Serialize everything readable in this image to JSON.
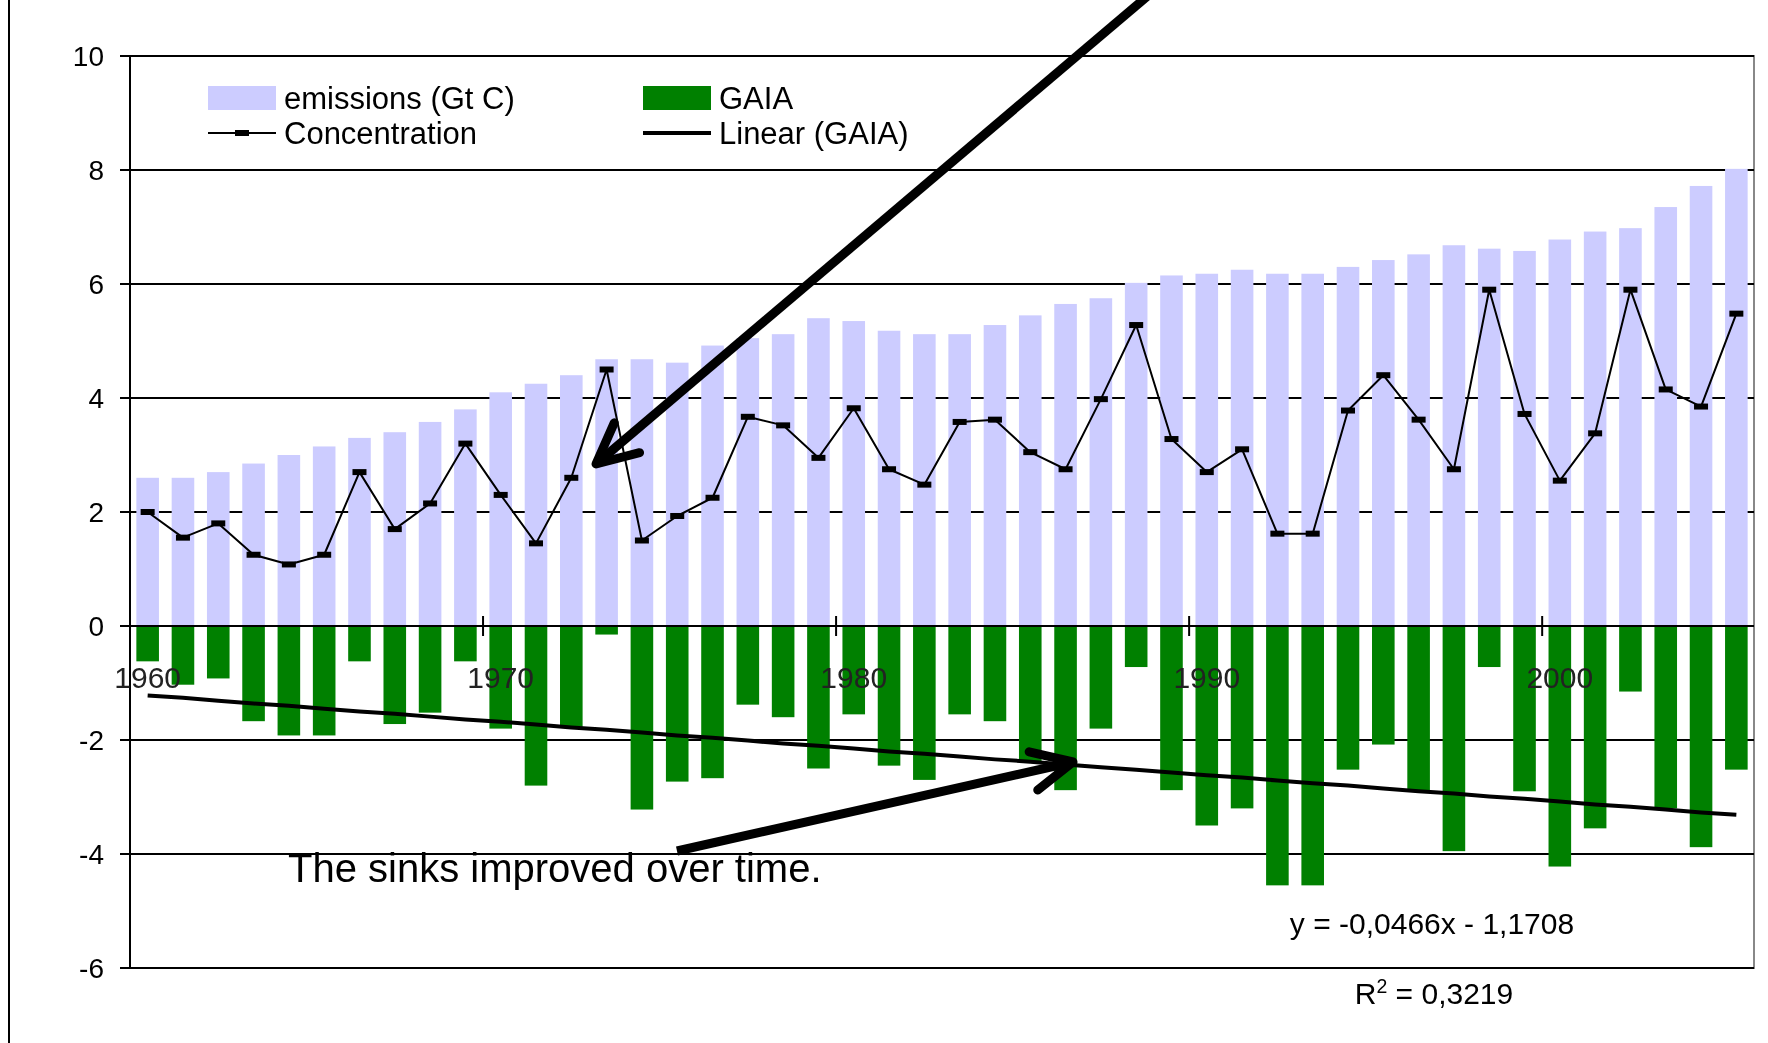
{
  "chart_data": {
    "type": "bar",
    "stacked": true,
    "categories": [
      "1960",
      null,
      null,
      null,
      null,
      null,
      null,
      null,
      null,
      null,
      "1970",
      null,
      null,
      null,
      null,
      null,
      null,
      null,
      null,
      null,
      "1980",
      null,
      null,
      null,
      null,
      null,
      null,
      null,
      null,
      null,
      "1990",
      null,
      null,
      null,
      null,
      null,
      null,
      null,
      null,
      null,
      "2000",
      null,
      null,
      null,
      null,
      null
    ],
    "series": [
      {
        "name": "emissions (Gt C)",
        "type": "bar",
        "color": "#ccccff",
        "values": [
          2.6,
          2.6,
          2.7,
          2.85,
          3.0,
          3.15,
          3.3,
          3.4,
          3.58,
          3.8,
          4.1,
          4.25,
          4.4,
          4.68,
          4.68,
          4.62,
          4.92,
          5.05,
          5.12,
          5.4,
          5.35,
          5.18,
          5.12,
          5.12,
          5.28,
          5.45,
          5.65,
          5.75,
          6.02,
          6.15,
          6.18,
          6.25,
          6.18,
          6.18,
          6.3,
          6.42,
          6.52,
          6.68,
          6.62,
          6.58,
          6.78,
          6.92,
          6.98,
          7.35,
          7.72,
          8.02
        ]
      },
      {
        "name": "GAIA",
        "type": "bar",
        "color": "#008000",
        "values": [
          -0.62,
          -1.03,
          -0.92,
          -1.67,
          -1.92,
          -1.92,
          -0.62,
          -1.72,
          -1.52,
          -0.62,
          -1.8,
          -2.8,
          -1.77,
          -0.15,
          -3.22,
          -2.73,
          -2.67,
          -1.38,
          -1.6,
          -2.5,
          -1.55,
          -2.45,
          -2.7,
          -1.55,
          -1.67,
          -2.4,
          -2.88,
          -1.8,
          -0.72,
          -2.88,
          -3.5,
          -3.2,
          -4.55,
          -4.55,
          -2.52,
          -2.08,
          -2.9,
          -3.95,
          -0.72,
          -2.9,
          -4.22,
          -3.55,
          -1.15,
          -3.2,
          -3.88,
          -2.52
        ]
      },
      {
        "name": "Concentration",
        "type": "line",
        "color": "#000000",
        "marker": "square",
        "values": [
          2.0,
          1.55,
          1.8,
          1.25,
          1.08,
          1.25,
          2.7,
          1.7,
          2.15,
          3.2,
          2.3,
          1.45,
          2.6,
          4.5,
          1.5,
          1.93,
          2.25,
          3.67,
          3.52,
          2.95,
          3.82,
          2.75,
          2.48,
          3.58,
          3.62,
          3.05,
          2.75,
          3.98,
          5.28,
          3.28,
          2.7,
          3.1,
          1.62,
          1.62,
          3.78,
          4.4,
          3.62,
          2.75,
          5.9,
          3.72,
          2.55,
          3.38,
          5.9,
          4.15,
          3.85,
          5.48
        ]
      },
      {
        "name": "Linear (GAIA)",
        "type": "line",
        "color": "#000000",
        "marker": "none",
        "values": [
          -1.22,
          -1.26,
          -1.31,
          -1.36,
          -1.4,
          -1.45,
          -1.5,
          -1.54,
          -1.59,
          -1.64,
          -1.68,
          -1.73,
          -1.78,
          -1.82,
          -1.87,
          -1.92,
          -1.96,
          -2.01,
          -2.06,
          -2.1,
          -2.15,
          -2.2,
          -2.24,
          -2.29,
          -2.34,
          -2.38,
          -2.43,
          -2.48,
          -2.52,
          -2.57,
          -2.62,
          -2.66,
          -2.71,
          -2.76,
          -2.8,
          -2.85,
          -2.9,
          -2.94,
          -2.99,
          -3.03,
          -3.08,
          -3.13,
          -3.17,
          -3.22,
          -3.27,
          -3.31
        ]
      }
    ],
    "ylim": [
      -6,
      10
    ],
    "yticks": [
      -6,
      -4,
      -2,
      0,
      2,
      4,
      6,
      8,
      10
    ],
    "grid": "y",
    "legend": "top left",
    "annotations": [
      "The sinks improved over time.",
      "y = -0,0466x - 1,1708",
      "R$^{2}$ = 0,3219"
    ]
  }
}
